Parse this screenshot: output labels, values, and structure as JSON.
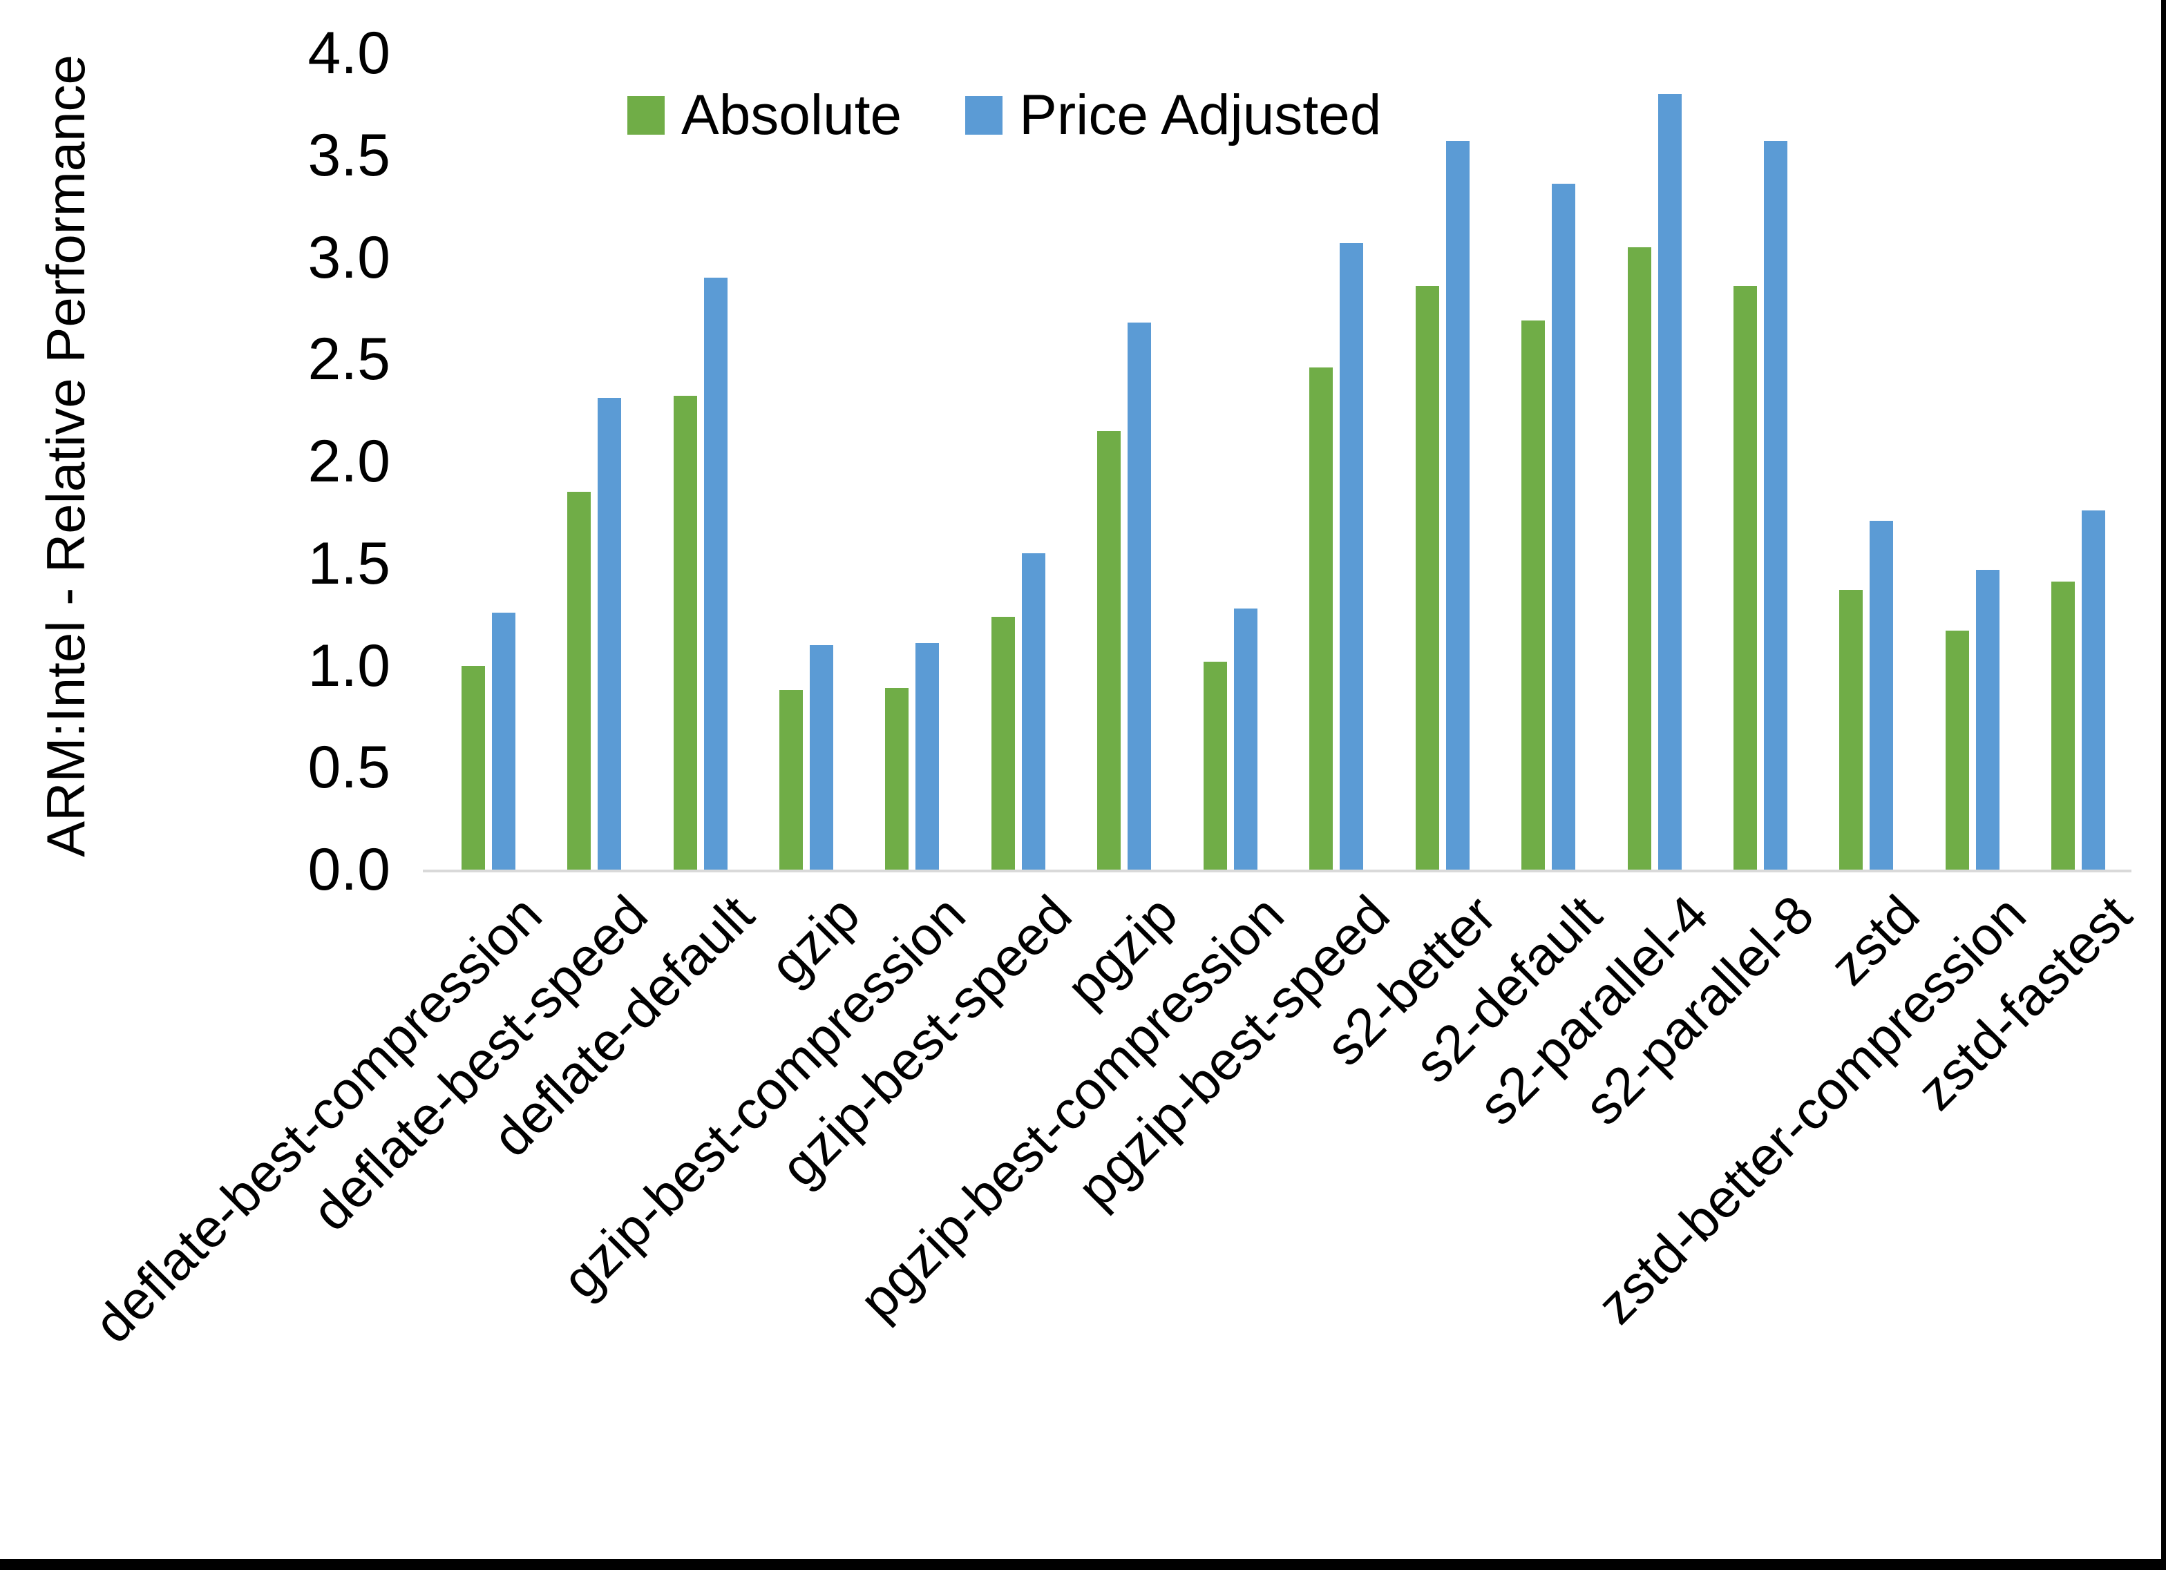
{
  "chart_data": {
    "type": "bar",
    "title": "",
    "xlabel": "",
    "ylabel": "ARM:Intel - Relative Performance",
    "ylim": [
      0.0,
      4.0
    ],
    "ytick_step": 0.5,
    "yticks": [
      "4.0",
      "3.5",
      "3.0",
      "2.5",
      "2.0",
      "1.5",
      "1.0",
      "0.5",
      "0.0"
    ],
    "grid": false,
    "legend_position": "top-inside",
    "axis_line_color": "#d9d9d9",
    "text_color": "#000000",
    "categories": [
      "deflate-best-compression",
      "deflate-best-speed",
      "deflate-default",
      "gzip",
      "gzip-best-compression",
      "gzip-best-speed",
      "pgzip",
      "pgzip-best-compression",
      "pgzip-best-speed",
      "s2-better",
      "s2-default",
      "s2-parallel-4",
      "s2-parallel-8",
      "zstd",
      "zstd-better-compression",
      "zstd-fastest"
    ],
    "series": [
      {
        "name": "Absolute",
        "color": "#70AD47",
        "values": [
          1.0,
          1.85,
          2.32,
          0.88,
          0.89,
          1.24,
          2.15,
          1.02,
          2.46,
          2.86,
          2.69,
          3.05,
          2.86,
          1.37,
          1.17,
          1.41
        ]
      },
      {
        "name": "Price Adjusted",
        "color": "#5B9BD5",
        "values": [
          1.26,
          2.31,
          2.9,
          1.1,
          1.11,
          1.55,
          2.68,
          1.28,
          3.07,
          3.57,
          3.36,
          3.8,
          3.57,
          1.71,
          1.47,
          1.76
        ]
      }
    ]
  }
}
